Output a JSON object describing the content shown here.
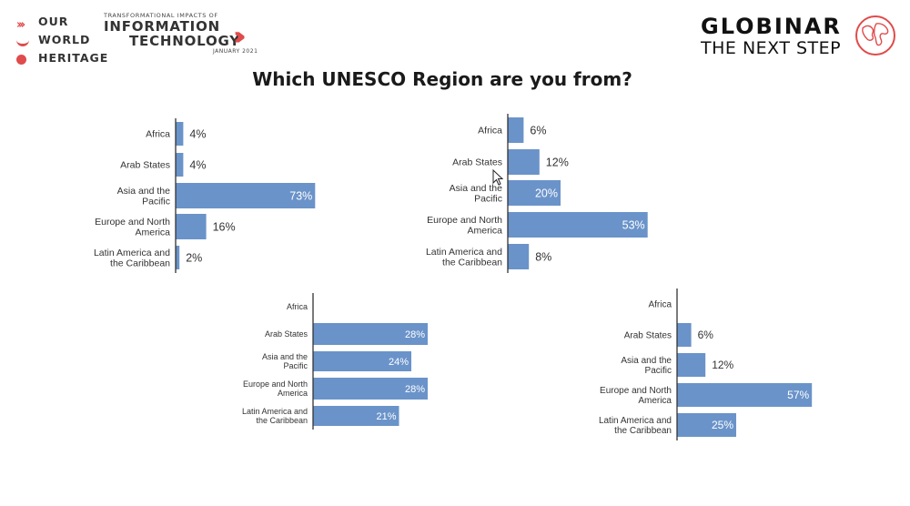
{
  "header": {
    "owh_logo": {
      "lines": [
        "OUR",
        "WORLD",
        "HERITAGE"
      ]
    },
    "event_logo": {
      "kicker": "TRANSFORMATIONAL IMPACTS OF",
      "line1": "INFORMATION",
      "line2": "TECHNOLOGY",
      "date": "JANUARY 2021"
    },
    "globinar_logo": {
      "title": "GLOBINAR",
      "subtitle": "THE NEXT STEP",
      "icon": "globe-icon"
    }
  },
  "title": "Which UNESCO Region are you from?",
  "colors": {
    "bar": "#6a93c9",
    "accent": "#e04b4b",
    "axis": "#333333"
  },
  "chart_data": [
    {
      "type": "bar",
      "orientation": "horizontal",
      "xlim": [
        0,
        100
      ],
      "categories": [
        "Africa",
        "Arab States",
        "Asia and the Pacific",
        "Europe and North America",
        "Latin America and the Caribbean"
      ],
      "values": [
        4,
        4,
        73,
        16,
        2
      ],
      "labels": [
        "4%",
        "4%",
        "73%",
        "16%",
        "2%"
      ]
    },
    {
      "type": "bar",
      "orientation": "horizontal",
      "xlim": [
        0,
        100
      ],
      "categories": [
        "Africa",
        "Arab States",
        "Asia and the Pacific",
        "Europe and North America",
        "Latin America and the Caribbean"
      ],
      "values": [
        6,
        12,
        20,
        53,
        8
      ],
      "labels": [
        "6%",
        "12%",
        "20%",
        "53%",
        "8%"
      ]
    },
    {
      "type": "bar",
      "orientation": "horizontal",
      "xlim": [
        0,
        100
      ],
      "categories": [
        "Africa",
        "Arab States",
        "Asia and the Pacific",
        "Europe and North America",
        "Latin America and the Caribbean"
      ],
      "values": [
        0,
        28,
        24,
        28,
        21
      ],
      "labels": [
        "",
        "28%",
        "24%",
        "28%",
        "21%"
      ]
    },
    {
      "type": "bar",
      "orientation": "horizontal",
      "xlim": [
        0,
        100
      ],
      "categories": [
        "Africa",
        "Arab States",
        "Asia and the Pacific",
        "Europe and North America",
        "Latin America and the Caribbean"
      ],
      "values": [
        0,
        6,
        12,
        57,
        25
      ],
      "labels": [
        "",
        "6%",
        "12%",
        "57%",
        "25%"
      ]
    }
  ]
}
